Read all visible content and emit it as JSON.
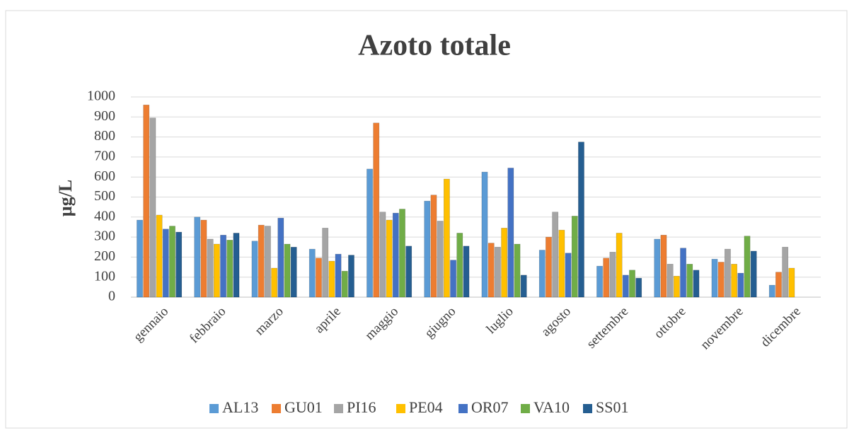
{
  "chart_data": {
    "type": "bar",
    "title": "Azoto totale",
    "y_label": "µg/L",
    "categories": [
      "gennaio",
      "febbraio",
      "marzo",
      "aprile",
      "maggio",
      "giugno",
      "luglio",
      "agosto",
      "settembre",
      "ottobre",
      "novembre",
      "dicembre"
    ],
    "series": [
      {
        "name": "AL13",
        "color": "#5b9bd5",
        "values": [
          385,
          400,
          280,
          240,
          640,
          480,
          625,
          235,
          155,
          290,
          190,
          60
        ]
      },
      {
        "name": "GU01",
        "color": "#ed7d31",
        "values": [
          960,
          385,
          360,
          195,
          870,
          510,
          270,
          300,
          195,
          310,
          175,
          125
        ]
      },
      {
        "name": "PI16",
        "color": "#a5a5a5",
        "values": [
          895,
          290,
          355,
          345,
          425,
          380,
          250,
          425,
          225,
          165,
          240,
          250
        ]
      },
      {
        "name": "PE04",
        "color": "#ffc000",
        "values": [
          410,
          265,
          145,
          180,
          385,
          590,
          345,
          335,
          320,
          105,
          165,
          145
        ]
      },
      {
        "name": "OR07",
        "color": "#4472c4",
        "values": [
          340,
          310,
          395,
          215,
          420,
          185,
          645,
          220,
          110,
          245,
          120,
          null
        ]
      },
      {
        "name": "VA10",
        "color": "#70ad47",
        "values": [
          355,
          285,
          265,
          130,
          440,
          320,
          265,
          405,
          135,
          165,
          305,
          null
        ]
      },
      {
        "name": "SS01",
        "color": "#255e91",
        "values": [
          325,
          320,
          250,
          210,
          255,
          255,
          110,
          775,
          95,
          135,
          230,
          null
        ]
      }
    ],
    "ylim": [
      0,
      1000
    ],
    "yticks": [
      0,
      100,
      200,
      300,
      400,
      500,
      600,
      700,
      800,
      900,
      1000
    ],
    "grid": true,
    "legend": "bottom"
  }
}
